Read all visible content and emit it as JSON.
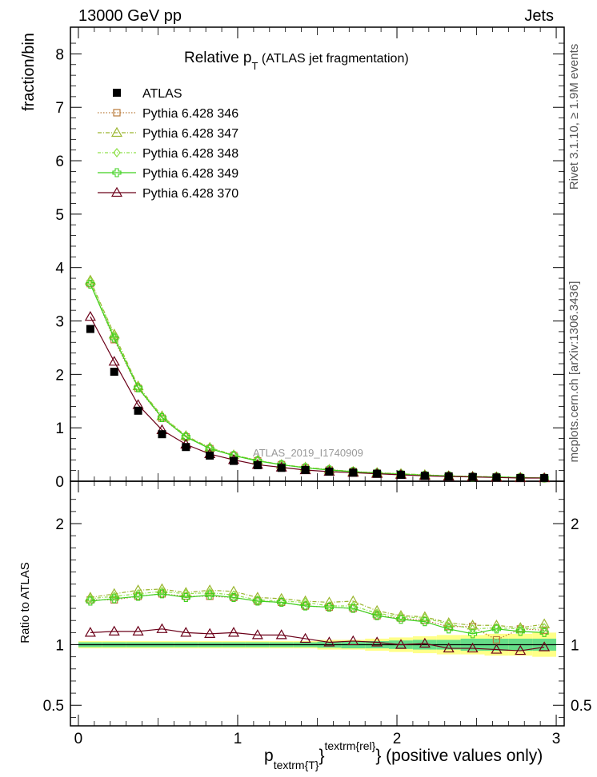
{
  "header": {
    "left": "13000 GeV pp",
    "right": "Jets"
  },
  "side_labels": {
    "rivet": "Rivet 3.1.10, ≥ 1.9M events",
    "mcplots": "mcplots.cern.ch [arXiv:1306.3436]"
  },
  "plot_title": {
    "main": "Relative p",
    "sub": "T",
    "rest": " (ATLAS jet fragmentation)"
  },
  "watermark": "ATLAS_2019_I1740909",
  "x_title": {
    "p": "p",
    "sub": "textrm{T}",
    "brace": "}",
    "sup": "textrm{rel}",
    "rest": "} (positive values only)"
  },
  "legend": [
    {
      "label": "ATLAS",
      "color": "#000000",
      "marker": "filled-square"
    },
    {
      "label": "Pythia 6.428 346",
      "color": "#b97a3a",
      "marker": "open-square"
    },
    {
      "label": "Pythia 6.428 347",
      "color": "#9ab52e",
      "marker": "open-triangle"
    },
    {
      "label": "Pythia 6.428 348",
      "color": "#8fe04a",
      "marker": "open-diamond"
    },
    {
      "label": "Pythia 6.428 349",
      "color": "#3ed11e",
      "marker": "open-cross"
    },
    {
      "label": "Pythia 6.428 370",
      "color": "#6b0019",
      "marker": "open-triangle"
    }
  ],
  "chart_data": [
    {
      "type": "scatter",
      "ylabel": "fraction/bin",
      "xlim": [
        -0.05,
        3.05
      ],
      "ylim": [
        0,
        8.5
      ],
      "y_ticks": [
        "0",
        "1",
        "2",
        "3",
        "4",
        "5",
        "6",
        "7",
        "8"
      ],
      "x": [
        0.075,
        0.225,
        0.375,
        0.525,
        0.675,
        0.825,
        0.975,
        1.125,
        1.275,
        1.425,
        1.575,
        1.725,
        1.875,
        2.025,
        2.175,
        2.325,
        2.475,
        2.625,
        2.775,
        2.925
      ],
      "series": [
        {
          "name": "ATLAS",
          "values": [
            2.85,
            2.05,
            1.32,
            0.88,
            0.64,
            0.48,
            0.38,
            0.3,
            0.25,
            0.21,
            0.18,
            0.16,
            0.14,
            0.12,
            0.1,
            0.09,
            0.08,
            0.07,
            0.06,
            0.06
          ]
        },
        {
          "name": "Pythia 6.428 346",
          "values": [
            3.7,
            2.65,
            1.74,
            1.18,
            0.83,
            0.61,
            0.48,
            0.38,
            0.31,
            0.25,
            0.21,
            0.18,
            0.15,
            0.13,
            0.11,
            0.1,
            0.08,
            0.08,
            0.07,
            0.06
          ]
        },
        {
          "name": "Pythia 6.428 347",
          "values": [
            3.76,
            2.75,
            1.78,
            1.22,
            0.85,
            0.63,
            0.49,
            0.39,
            0.31,
            0.26,
            0.22,
            0.18,
            0.16,
            0.14,
            0.12,
            0.1,
            0.09,
            0.08,
            0.07,
            0.06
          ]
        },
        {
          "name": "Pythia 6.428 348",
          "values": [
            3.74,
            2.72,
            1.76,
            1.21,
            0.84,
            0.62,
            0.49,
            0.39,
            0.31,
            0.26,
            0.21,
            0.18,
            0.16,
            0.14,
            0.12,
            0.1,
            0.09,
            0.08,
            0.07,
            0.06
          ]
        },
        {
          "name": "Pythia 6.428 349",
          "values": [
            3.69,
            2.68,
            1.75,
            1.19,
            0.83,
            0.61,
            0.48,
            0.38,
            0.31,
            0.25,
            0.21,
            0.18,
            0.15,
            0.13,
            0.11,
            0.1,
            0.08,
            0.08,
            0.07,
            0.06
          ]
        },
        {
          "name": "Pythia 6.428 370",
          "values": [
            3.08,
            2.24,
            1.43,
            0.96,
            0.69,
            0.51,
            0.4,
            0.31,
            0.26,
            0.21,
            0.18,
            0.16,
            0.14,
            0.12,
            0.1,
            0.09,
            0.08,
            0.07,
            0.06,
            0.06
          ]
        }
      ]
    },
    {
      "type": "scatter",
      "ylabel": "Ratio to ATLAS",
      "xlabel": "p_{textrm{T}}^{textrm{rel}} (positive values only)",
      "xlim": [
        -0.05,
        3.05
      ],
      "ylim": [
        0.33,
        2.35
      ],
      "y_ticks": [
        "0.5",
        "1",
        "2"
      ],
      "x_ticks": [
        "0",
        "1",
        "2",
        "3"
      ],
      "x": [
        0.075,
        0.225,
        0.375,
        0.525,
        0.675,
        0.825,
        0.975,
        1.125,
        1.275,
        1.425,
        1.575,
        1.725,
        1.875,
        2.025,
        2.175,
        2.325,
        2.475,
        2.625,
        2.775,
        2.925
      ],
      "band": {
        "stat_halfwidth": [
          0.02,
          0.02,
          0.02,
          0.02,
          0.02,
          0.02,
          0.02,
          0.02,
          0.02,
          0.02,
          0.025,
          0.03,
          0.03,
          0.035,
          0.04,
          0.04,
          0.05,
          0.05,
          0.05,
          0.05
        ],
        "total_halfwidth": [
          0.03,
          0.03,
          0.03,
          0.03,
          0.03,
          0.03,
          0.03,
          0.03,
          0.03,
          0.03,
          0.04,
          0.04,
          0.05,
          0.06,
          0.07,
          0.08,
          0.08,
          0.09,
          0.09,
          0.1
        ],
        "inner_color": "#66dd88",
        "outer_color": "#ffff88"
      },
      "series": [
        {
          "name": "Pythia 6.428 346",
          "values": [
            1.37,
            1.37,
            1.4,
            1.42,
            1.4,
            1.4,
            1.39,
            1.36,
            1.35,
            1.32,
            1.31,
            1.3,
            1.24,
            1.22,
            1.2,
            1.15,
            1.15,
            1.04,
            1.13,
            1.12
          ]
        },
        {
          "name": "Pythia 6.428 347",
          "values": [
            1.39,
            1.42,
            1.45,
            1.46,
            1.43,
            1.45,
            1.44,
            1.39,
            1.38,
            1.36,
            1.35,
            1.36,
            1.28,
            1.24,
            1.23,
            1.18,
            1.16,
            1.16,
            1.14,
            1.17
          ]
        },
        {
          "name": "Pythia 6.428 348",
          "values": [
            1.38,
            1.4,
            1.42,
            1.44,
            1.42,
            1.43,
            1.41,
            1.37,
            1.36,
            1.35,
            1.32,
            1.32,
            1.26,
            1.23,
            1.22,
            1.17,
            1.13,
            1.14,
            1.13,
            1.14
          ]
        },
        {
          "name": "Pythia 6.428 349",
          "values": [
            1.36,
            1.38,
            1.4,
            1.42,
            1.39,
            1.41,
            1.39,
            1.36,
            1.35,
            1.32,
            1.31,
            1.3,
            1.24,
            1.21,
            1.19,
            1.13,
            1.09,
            1.13,
            1.11,
            1.1
          ]
        },
        {
          "name": "Pythia 6.428 370",
          "values": [
            1.1,
            1.11,
            1.11,
            1.13,
            1.1,
            1.09,
            1.1,
            1.08,
            1.08,
            1.05,
            1.02,
            1.03,
            1.02,
            1.0,
            1.01,
            0.97,
            0.97,
            0.96,
            0.95,
            0.98
          ]
        }
      ]
    }
  ]
}
